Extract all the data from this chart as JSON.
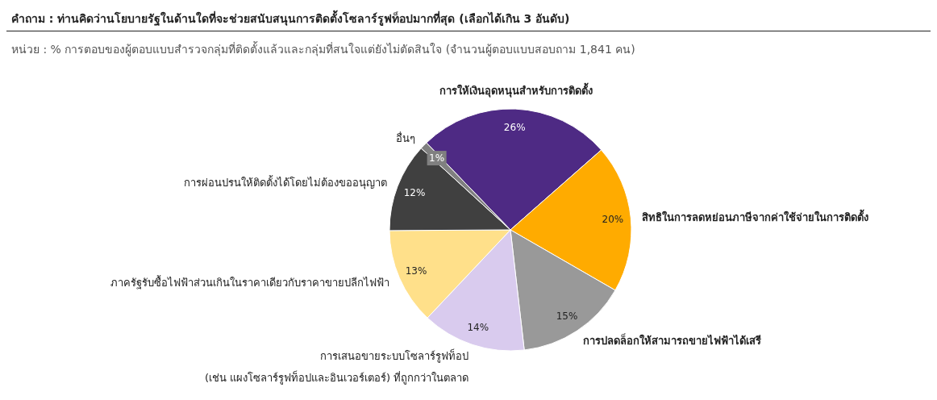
{
  "chart_data": {
    "type": "pie",
    "title": "คำถาม : ท่านคิดว่านโยบายรัฐในด้านใดที่จะช่วยสนับสนุนการติดตั้งโซลาร์รูฟท็อปมากที่สุด (เลือกได้เกิน 3 อันดับ)",
    "subtitle": "หน่วย : % การตอบของผู้ตอบแบบสำรวจกลุ่มที่ติดตั้งแล้วและกลุ่มที่สนใจแต่ยังไม่ตัดสินใจ (จำนวนผู้ตอบแบบสอบถาม 1,841 คน)",
    "categories": [
      "การให้เงินอุดหนุนสำหรับการติดตั้ง",
      "สิทธิในการลดหย่อนภาษีจากค่าใช้จ่ายในการติดตั้ง",
      "การปลดล็อกให้สามารถขายไฟฟ้าได้เสรี",
      "การเสนอขายระบบโซลาร์รูฟท็อป\n(เช่น แผงโซลาร์รูฟท็อปและอินเวอร์เตอร์) ที่ถูกกว่าในตลาด",
      "ภาครัฐรับซื้อไฟฟ้าส่วนเกินในราคาเดียวกับราคาขายปลีกไฟฟ้า",
      "การผ่อนปรนให้ติดตั้งได้โดยไม่ต้องขออนุญาต",
      "อื่นๆ"
    ],
    "values": [
      26,
      20,
      15,
      14,
      13,
      12,
      1
    ],
    "value_labels": [
      "26%",
      "20%",
      "15%",
      "14%",
      "13%",
      "12%",
      "1%"
    ],
    "colors": [
      "#4e2a84",
      "#ffab00",
      "#999999",
      "#d9cbee",
      "#ffe08a",
      "#404040",
      "#808080"
    ]
  }
}
